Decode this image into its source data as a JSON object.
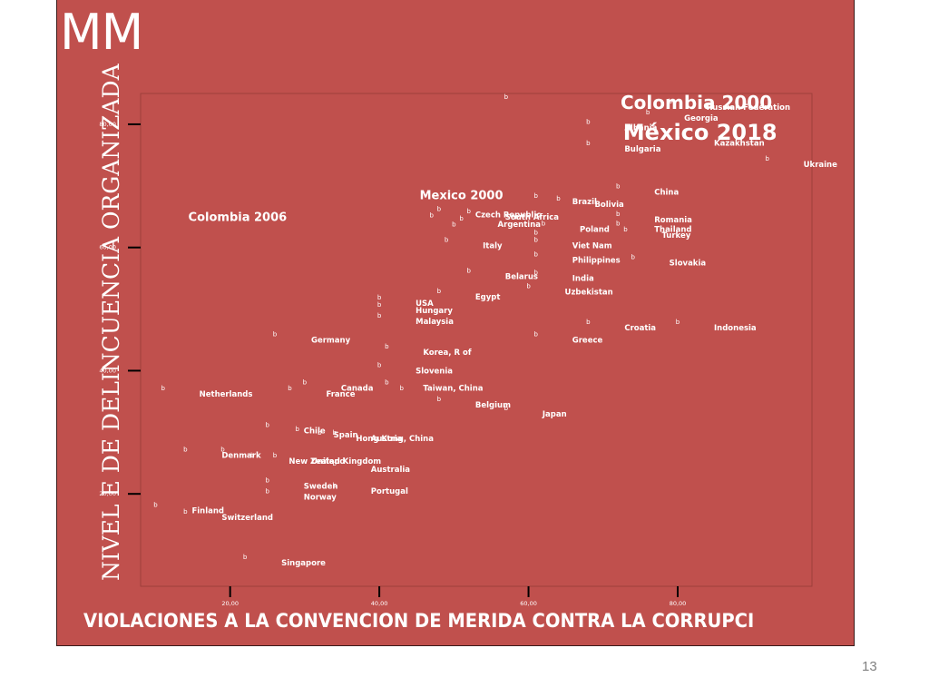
{
  "slide": {
    "title": "MM",
    "page_number": "13"
  },
  "chart_data": {
    "type": "scatter",
    "xlabel": "VIOLACIONES A LA CONVENCION DE MERIDA CONTRA LA CORRUPCI",
    "ylabel": "NIVEL E DE DELINCUENCIA ORGANIZADA",
    "xlim": [
      8,
      98
    ],
    "ylim": [
      5,
      85
    ],
    "xticks": [
      20,
      40,
      60,
      80
    ],
    "yticks": [
      20,
      40,
      60,
      80
    ],
    "xtick_labels": [
      "20,00",
      "40,00",
      "60,00",
      "80,00"
    ],
    "ytick_labels": [
      "20,00",
      "40,00",
      "60,00",
      "80,00"
    ],
    "marker": "b",
    "points": [
      {
        "label": "Russian Federation",
        "x": 79,
        "y": 82.8
      },
      {
        "label": "",
        "x": 57,
        "y": 83.5
      },
      {
        "label": "Georgia",
        "x": 76,
        "y": 81
      },
      {
        "label": "Albania",
        "x": 68,
        "y": 79.5
      },
      {
        "label": "Kazakhstan",
        "x": 80,
        "y": 77
      },
      {
        "label": "Bulgaria",
        "x": 68,
        "y": 76
      },
      {
        "label": "Ukraine",
        "x": 92,
        "y": 73.5
      },
      {
        "label": "China",
        "x": 72,
        "y": 69
      },
      {
        "label": "Brazil",
        "x": 61,
        "y": 67.5
      },
      {
        "label": "Bolivia",
        "x": 64,
        "y": 67
      },
      {
        "label": "Czech Republic",
        "x": 48,
        "y": 65.3
      },
      {
        "label": "South Africa",
        "x": 52,
        "y": 65
      },
      {
        "label": "Romania",
        "x": 72,
        "y": 64.5
      },
      {
        "label": "",
        "x": 47,
        "y": 64.3
      },
      {
        "label": "Argentina",
        "x": 51,
        "y": 63.8
      },
      {
        "label": "",
        "x": 50,
        "y": 62.8
      },
      {
        "label": "Poland",
        "x": 62,
        "y": 63
      },
      {
        "label": "Thailand",
        "x": 72,
        "y": 63
      },
      {
        "label": "Turkey",
        "x": 73,
        "y": 62
      },
      {
        "label": "Italy",
        "x": 49,
        "y": 60.3
      },
      {
        "label": "Viet Nam",
        "x": 61,
        "y": 60.3
      },
      {
        "label": "",
        "x": 61,
        "y": 61.5
      },
      {
        "label": "Philippines",
        "x": 61,
        "y": 58
      },
      {
        "label": "Slovakia",
        "x": 74,
        "y": 57.5
      },
      {
        "label": "Belarus",
        "x": 52,
        "y": 55.3
      },
      {
        "label": "India",
        "x": 61,
        "y": 55
      },
      {
        "label": "Uzbekistan",
        "x": 60,
        "y": 52.8
      },
      {
        "label": "Egypt",
        "x": 48,
        "y": 52
      },
      {
        "label": "USA",
        "x": 40,
        "y": 51
      },
      {
        "label": "Hungary",
        "x": 40,
        "y": 49.8
      },
      {
        "label": "Malaysia",
        "x": 40,
        "y": 48
      },
      {
        "label": "Croatia",
        "x": 68,
        "y": 47
      },
      {
        "label": "Indonesia",
        "x": 80,
        "y": 47
      },
      {
        "label": "Germany",
        "x": 26,
        "y": 45
      },
      {
        "label": "Greece",
        "x": 61,
        "y": 45
      },
      {
        "label": "Korea, R of",
        "x": 41,
        "y": 43
      },
      {
        "label": "Slovenia",
        "x": 40,
        "y": 40
      },
      {
        "label": "Canada",
        "x": 30,
        "y": 37.2
      },
      {
        "label": "Taiwan, China",
        "x": 41,
        "y": 37.2
      },
      {
        "label": "Netherlands",
        "x": 11,
        "y": 36.2
      },
      {
        "label": "France",
        "x": 28,
        "y": 36.2
      },
      {
        "label": "",
        "x": 43,
        "y": 36.2
      },
      {
        "label": "Belgium",
        "x": 48,
        "y": 34.5
      },
      {
        "label": "Japan",
        "x": 57,
        "y": 33
      },
      {
        "label": "Chile",
        "x": 25,
        "y": 30.3
      },
      {
        "label": "Spain",
        "x": 29,
        "y": 29.6
      },
      {
        "label": "Hong Kong, China",
        "x": 32,
        "y": 29
      },
      {
        "label": "Austria",
        "x": 34,
        "y": 29
      },
      {
        "label": "Denmark",
        "x": 14,
        "y": 26.3
      },
      {
        "label": "",
        "x": 19,
        "y": 26.3
      },
      {
        "label": "New Zealand",
        "x": 23,
        "y": 25.3
      },
      {
        "label": "United Kingdom",
        "x": 26,
        "y": 25.3
      },
      {
        "label": "Australia",
        "x": 34,
        "y": 24
      },
      {
        "label": "Sweden",
        "x": 25,
        "y": 21.3
      },
      {
        "label": "Portugal",
        "x": 34,
        "y": 20.5
      },
      {
        "label": "Norway",
        "x": 25,
        "y": 19.5
      },
      {
        "label": "Finland",
        "x": 10,
        "y": 17.3
      },
      {
        "label": "Switzerland",
        "x": 14,
        "y": 16.2
      },
      {
        "label": "Singapore",
        "x": 22,
        "y": 8.8
      }
    ],
    "annotations": [
      {
        "text": "Colombia 2000",
        "x": 82.5,
        "y": 82.5,
        "size": "large"
      },
      {
        "text": "México 2018",
        "x": 83,
        "y": 77.5,
        "size": "xlarge"
      },
      {
        "text": "Mexico 2000",
        "x": 51,
        "y": 67.8,
        "size": "medium"
      },
      {
        "text": "Colombia 2006",
        "x": 21,
        "y": 64.3,
        "size": "medium"
      }
    ]
  }
}
